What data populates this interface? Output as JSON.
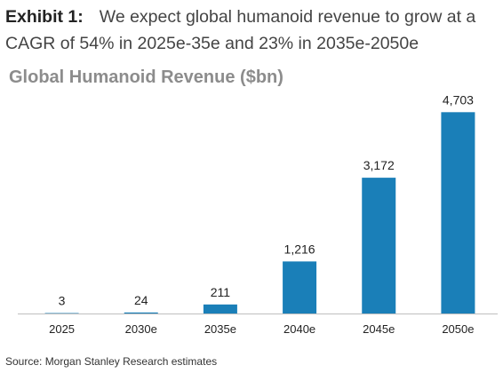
{
  "header": {
    "exhibit_label": "Exhibit 1:",
    "text": "We expect global humanoid revenue to grow at a CAGR of 54% in 2025e-35e and 23% in 2035e-2050e"
  },
  "chart_data": {
    "type": "bar",
    "title": "Global Humanoid Revenue ($bn)",
    "categories": [
      "2025",
      "2030e",
      "2035e",
      "2040e",
      "2045e",
      "2050e"
    ],
    "values": [
      3,
      24,
      211,
      1216,
      3172,
      4703
    ],
    "value_labels": [
      "3",
      "24",
      "211",
      "1,216",
      "3,172",
      "4,703"
    ],
    "ylim": [
      0,
      5000
    ],
    "grid": false,
    "bar_color": "#1a7fb8"
  },
  "footer": {
    "source": "Source: Morgan Stanley Research estimates"
  }
}
